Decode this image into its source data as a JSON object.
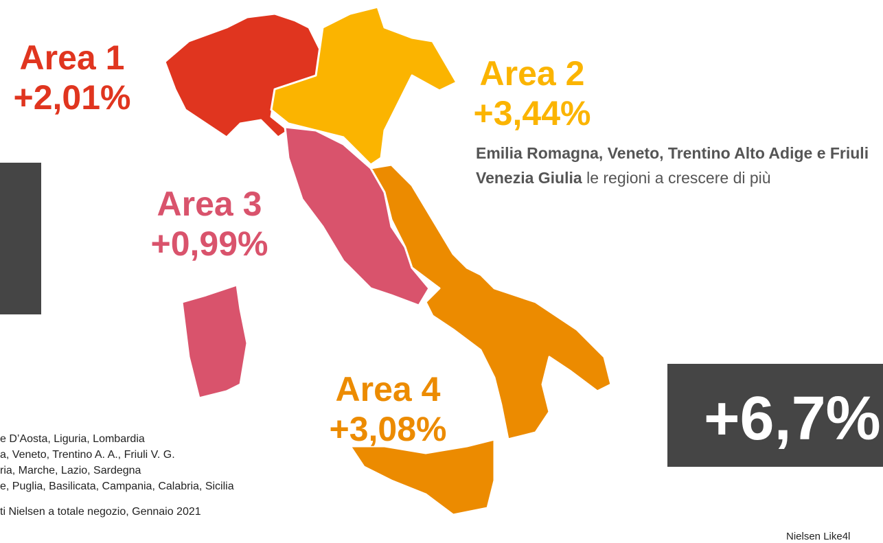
{
  "areas": [
    {
      "label": "Area 1",
      "value": "+2,01%"
    },
    {
      "label": "Area 2",
      "value": "+3,44%"
    },
    {
      "label": "Area 3",
      "value": "+0,99%"
    },
    {
      "label": "Area 4",
      "value": "+3,08%"
    }
  ],
  "description": {
    "bold": "Emilia Romagna, Veneto, Trentino Alto Adige e Friuli Venezia Giulia",
    "rest": " le regioni a crescere di più"
  },
  "legend": [
    "e D’Aosta, Liguria, Lombardia",
    "a, Veneto, Trentino A. A., Friuli V. G.",
    "ria, Marche, Lazio, Sardegna",
    "e, Puglia, Basilicata, Campania, Calabria, Sicilia"
  ],
  "footnote": "ti Nielsen a totale negozio, Gennaio 2021",
  "total": "+6,7%",
  "source": "Nielsen Like4l"
}
